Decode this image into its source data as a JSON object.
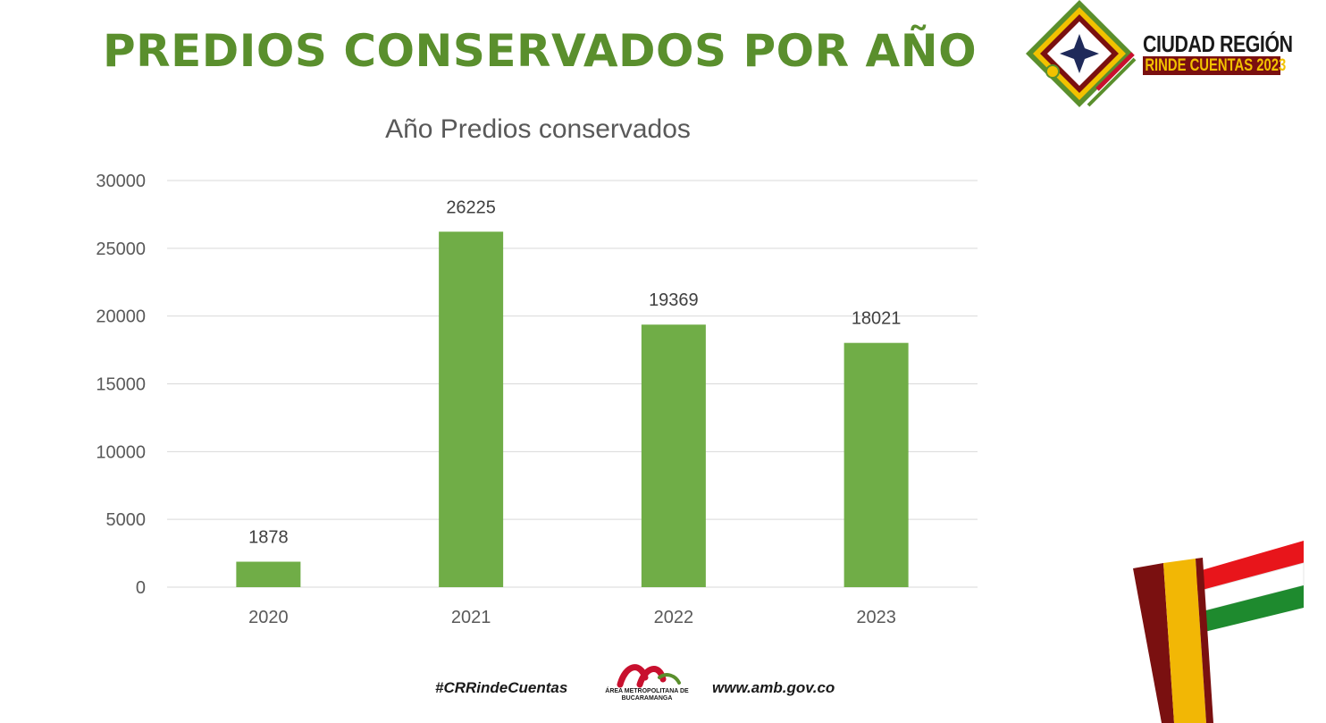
{
  "slide": {
    "title": "PREDIOS CONSERVADOS POR AÑO"
  },
  "logo": {
    "line1": "CIUDAD REGIÓN",
    "line2": "RINDE CUENTAS 2023",
    "colors": {
      "green": "#5a8f2d",
      "yellow": "#f2c200",
      "red": "#c8102e",
      "maroon": "#7a1010"
    }
  },
  "chart_data": {
    "type": "bar",
    "title": "Año Predios conservados",
    "categories": [
      "2020",
      "2021",
      "2022",
      "2023"
    ],
    "values": [
      1878,
      26225,
      19369,
      18021
    ],
    "data_labels": [
      "1878",
      "26225",
      "19369",
      "18021"
    ],
    "ylim": [
      0,
      30000
    ],
    "yticks": [
      0,
      5000,
      10000,
      15000,
      20000,
      25000,
      30000
    ],
    "ytick_labels": [
      "0",
      "5000",
      "10000",
      "15000",
      "20000",
      "25000",
      "30000"
    ],
    "xlabel": "",
    "ylabel": "",
    "grid": true,
    "bar_color": "#70ad47"
  },
  "footer": {
    "hashtag": "#CRRindeCuentas",
    "org_name": "ÁREA METROPOLITANA DE BUCARAMANGA",
    "website": "www.amb.gov.co"
  }
}
